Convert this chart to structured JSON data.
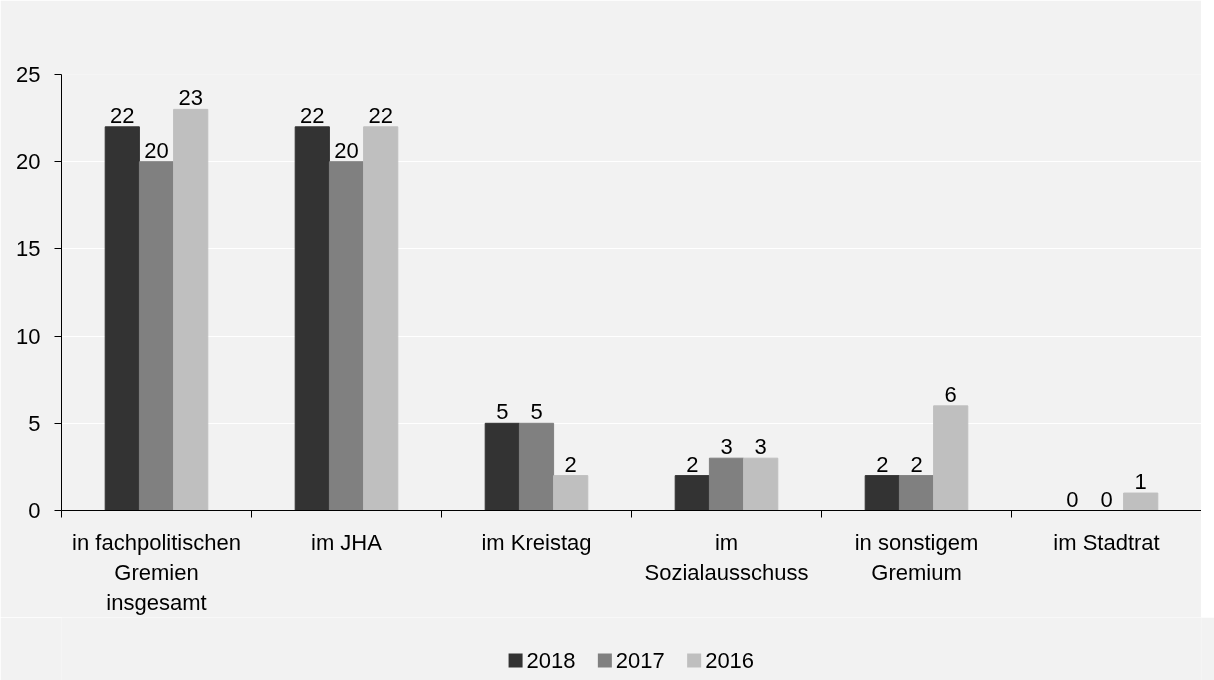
{
  "chart_data": {
    "type": "bar",
    "categories": [
      "in fachpolitischen\nGremien\ninsgesamt",
      "im JHA",
      "im Kreistag",
      "im\nSozialausschuss",
      "in sonstigem\nGremium",
      "im Stadtrat"
    ],
    "series": [
      {
        "name": "2018",
        "color": "#333333",
        "values": [
          22,
          22,
          5,
          2,
          2,
          0
        ]
      },
      {
        "name": "2017",
        "color": "#808080",
        "values": [
          20,
          20,
          5,
          3,
          2,
          0
        ]
      },
      {
        "name": "2016",
        "color": "#bfbfbf",
        "values": [
          23,
          22,
          2,
          3,
          6,
          1
        ]
      }
    ],
    "ylim": [
      0,
      25
    ],
    "yticks": [
      0,
      5,
      10,
      15,
      20,
      25
    ],
    "grid": "y",
    "legend": "bottom",
    "data_labels": true
  }
}
